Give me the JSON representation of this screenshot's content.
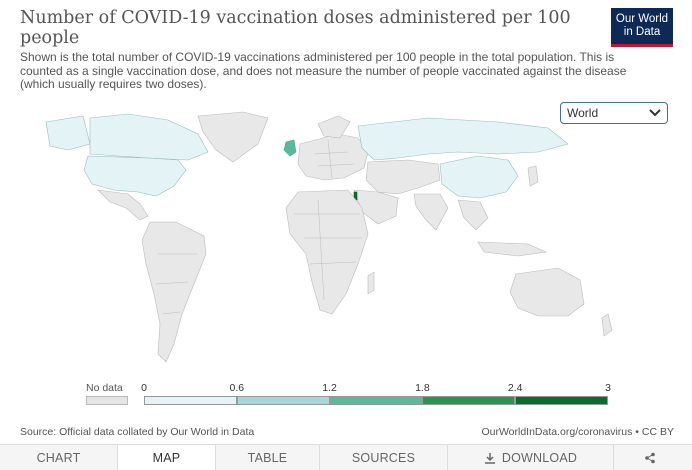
{
  "header": {
    "title": "Number of COVID-19 vaccination doses administered per 100 people",
    "subtitle": "Shown is the total number of COVID-19 vaccinations administered per 100 people in the total population. This is counted as a single vaccination dose, and does not measure the number of people vaccinated against the disease (which usually requires two doses)."
  },
  "logo": {
    "line1": "Our World",
    "line2": "in Data"
  },
  "region_selector": {
    "value": "World"
  },
  "legend": {
    "no_data_label": "No data",
    "ticks": [
      "0",
      "0.6",
      "1.2",
      "1.8",
      "2.4",
      "3"
    ],
    "bins": [
      {
        "from": 0,
        "to": 0.6,
        "color": "#e4f4f6"
      },
      {
        "from": 0.6,
        "to": 1.2,
        "color": "#a3d8d6"
      },
      {
        "from": 1.2,
        "to": 1.8,
        "color": "#5bb99a"
      },
      {
        "from": 1.8,
        "to": 2.4,
        "color": "#2a9352"
      },
      {
        "from": 2.4,
        "to": 3,
        "color": "#0b6a2d"
      }
    ],
    "no_data_color": "#e5e5e5"
  },
  "footer": {
    "source": "Source: Official data collated by Our World in Data",
    "credit": "OurWorldInData.org/coronavirus • CC BY"
  },
  "tabs": [
    "CHART",
    "MAP",
    "TABLE",
    "SOURCES",
    "DOWNLOAD"
  ],
  "active_tab": "MAP",
  "map": {
    "colored_countries": [
      {
        "name": "United States",
        "color": "#e4f4f6"
      },
      {
        "name": "Canada",
        "color": "#e4f4f6"
      },
      {
        "name": "Russia",
        "color": "#e4f4f6"
      },
      {
        "name": "China",
        "color": "#e4f4f6"
      },
      {
        "name": "United Kingdom",
        "color": "#5bb99a"
      },
      {
        "name": "Israel",
        "color": "#0b6a2d"
      }
    ]
  }
}
